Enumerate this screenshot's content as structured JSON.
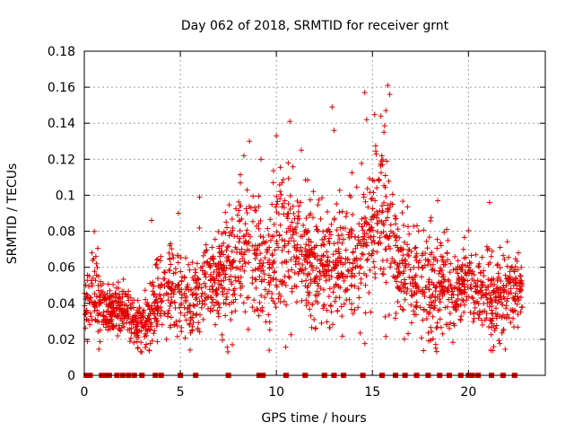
{
  "chart_data": {
    "type": "scatter",
    "title": "Day 062 of 2018, SRMTID for receiver grnt",
    "xlabel": "GPS time / hours",
    "ylabel": "SRMTID / TECUs",
    "xlim": [
      0,
      24
    ],
    "ylim": [
      0,
      0.18
    ],
    "grid": true,
    "marker": "plus",
    "color": "#e00000",
    "x_ticks": [
      0,
      5,
      10,
      15,
      20
    ],
    "y_ticks": [
      0,
      0.02,
      0.04,
      0.06,
      0.08,
      0.1,
      0.12,
      0.14,
      0.16,
      0.18
    ],
    "x_tick_labels": [
      "0",
      "5",
      "10",
      "15",
      "20"
    ],
    "y_tick_labels": [
      "0",
      "0.02",
      "0.04",
      "0.06",
      "0.08",
      "0.1",
      "0.12",
      "0.14",
      "0.16",
      "0.18"
    ],
    "envelope": {
      "hours": [
        0,
        0.5,
        1,
        1.5,
        2,
        2.5,
        3,
        3.5,
        4,
        4.5,
        5,
        5.5,
        6,
        6.5,
        7,
        7.5,
        8,
        8.5,
        9,
        9.5,
        10,
        10.5,
        11,
        11.5,
        12,
        12.5,
        13,
        13.5,
        14,
        14.5,
        15,
        15.5,
        16,
        16.5,
        17,
        17.5,
        18,
        18.5,
        19,
        19.5,
        20,
        20.5,
        21,
        21.5,
        22,
        22.5,
        22.8
      ],
      "median": [
        0.04,
        0.044,
        0.038,
        0.036,
        0.037,
        0.03,
        0.03,
        0.034,
        0.045,
        0.05,
        0.044,
        0.041,
        0.045,
        0.049,
        0.053,
        0.058,
        0.062,
        0.068,
        0.063,
        0.058,
        0.07,
        0.075,
        0.073,
        0.068,
        0.065,
        0.06,
        0.062,
        0.058,
        0.06,
        0.075,
        0.085,
        0.09,
        0.07,
        0.06,
        0.058,
        0.055,
        0.048,
        0.052,
        0.045,
        0.048,
        0.05,
        0.05,
        0.042,
        0.042,
        0.045,
        0.047,
        0.048
      ],
      "spread": [
        0.01,
        0.015,
        0.01,
        0.009,
        0.009,
        0.01,
        0.01,
        0.015,
        0.018,
        0.02,
        0.015,
        0.015,
        0.017,
        0.018,
        0.02,
        0.022,
        0.025,
        0.028,
        0.02,
        0.02,
        0.028,
        0.028,
        0.025,
        0.022,
        0.022,
        0.02,
        0.022,
        0.02,
        0.02,
        0.028,
        0.03,
        0.035,
        0.022,
        0.022,
        0.022,
        0.02,
        0.02,
        0.022,
        0.015,
        0.015,
        0.015,
        0.015,
        0.015,
        0.015,
        0.015,
        0.012,
        0.012
      ]
    },
    "point_count": 2200,
    "peaks": [
      {
        "x": 10.7,
        "y": 0.141
      },
      {
        "x": 10.0,
        "y": 0.133
      },
      {
        "x": 8.6,
        "y": 0.13
      },
      {
        "x": 12.9,
        "y": 0.149
      },
      {
        "x": 13.0,
        "y": 0.136
      },
      {
        "x": 14.6,
        "y": 0.157
      },
      {
        "x": 15.8,
        "y": 0.161
      },
      {
        "x": 15.9,
        "y": 0.156
      },
      {
        "x": 15.7,
        "y": 0.147
      },
      {
        "x": 14.7,
        "y": 0.142
      },
      {
        "x": 15.6,
        "y": 0.135
      },
      {
        "x": 6.0,
        "y": 0.099
      },
      {
        "x": 9.2,
        "y": 0.12
      },
      {
        "x": 11.3,
        "y": 0.125
      },
      {
        "x": 18.4,
        "y": 0.097
      },
      {
        "x": 21.1,
        "y": 0.096
      },
      {
        "x": 22.6,
        "y": 0.068
      },
      {
        "x": 3.5,
        "y": 0.086
      },
      {
        "x": 4.9,
        "y": 0.09
      },
      {
        "x": 0.6,
        "y": 0.066
      }
    ],
    "zero_value_hours": [
      0.1,
      0.3,
      0.9,
      1.1,
      1.3,
      1.7,
      2.0,
      2.3,
      2.6,
      3.0,
      3.7,
      4.0,
      5.0,
      5.8,
      7.5,
      9.1,
      9.3,
      10.5,
      11.5,
      12.5,
      13.0,
      13.5,
      14.5,
      15.5,
      16.2,
      16.7,
      17.3,
      17.9,
      18.5,
      19.0,
      19.6,
      20.0,
      20.2,
      20.5,
      21.2,
      21.8,
      22.4
    ]
  }
}
